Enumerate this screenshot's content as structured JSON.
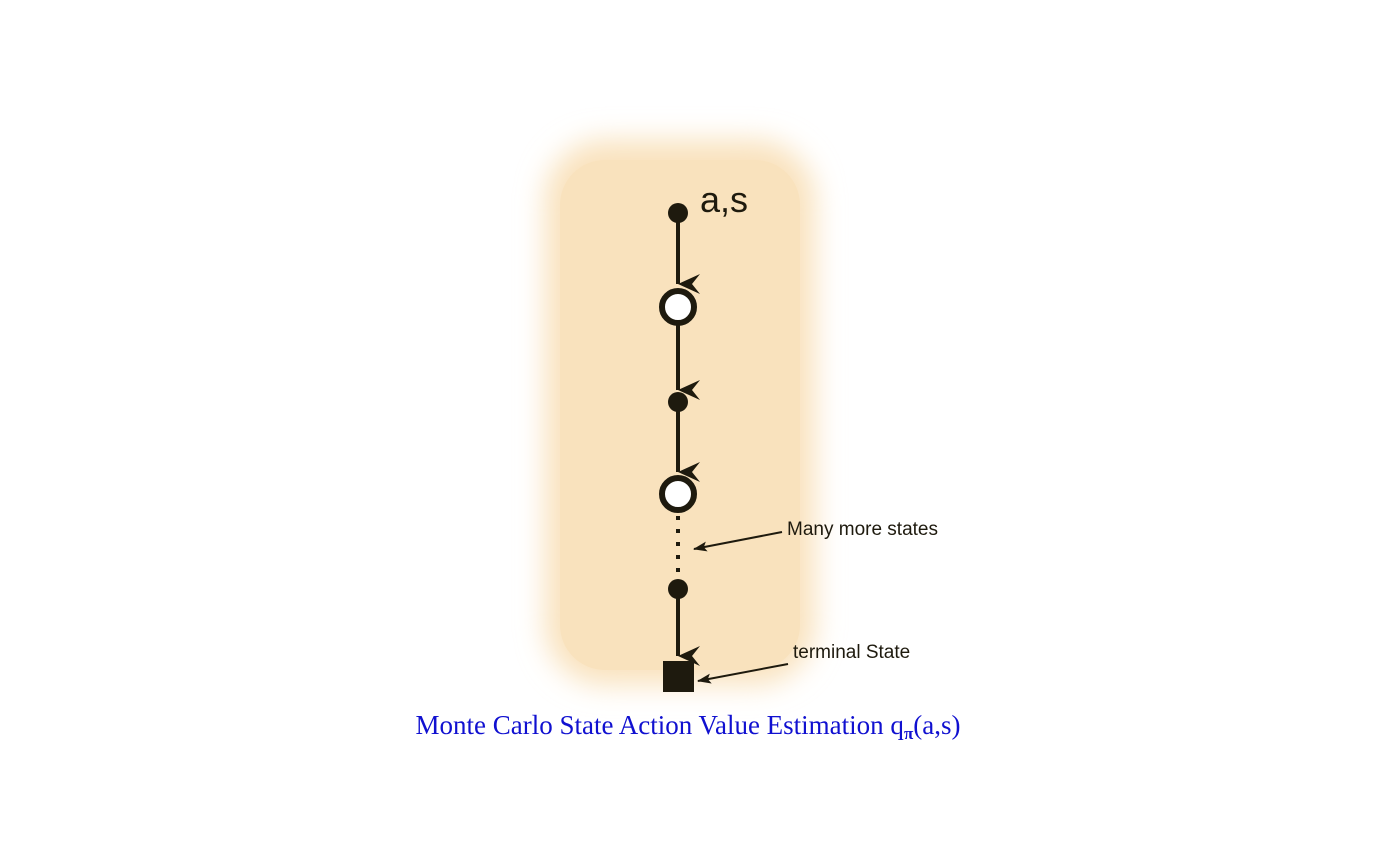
{
  "diagram": {
    "start_label": "a,s",
    "many_states_label": "Many more states",
    "terminal_label": "terminal State"
  },
  "caption": {
    "text": "Monte Carlo State Action Value Estimation q",
    "subscript": "π",
    "suffix": "(a,s)"
  },
  "colors": {
    "background_panel": "#f9e2bd",
    "node": "#1e1a0e",
    "caption": "#1010d0"
  }
}
